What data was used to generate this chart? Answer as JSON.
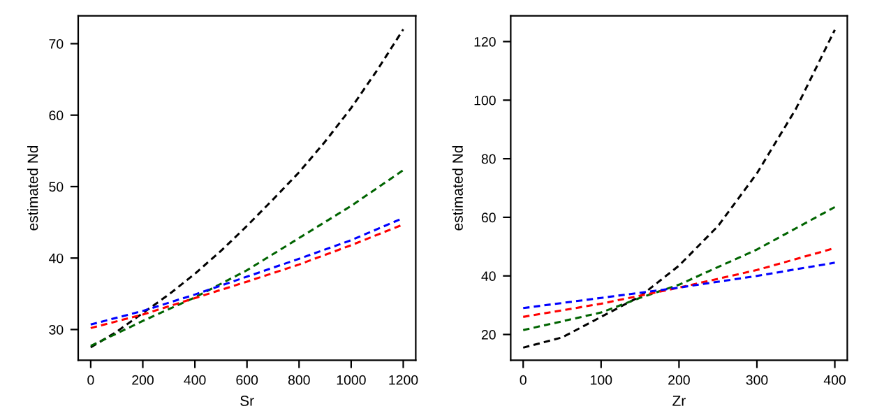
{
  "chart_data": [
    {
      "type": "line",
      "xlabel": "Sr",
      "ylabel": "estimated Nd",
      "xlim": [
        -48,
        1248
      ],
      "ylim": [
        25.7,
        73.9
      ],
      "xticks": [
        0,
        200,
        400,
        600,
        800,
        1000,
        1200
      ],
      "yticks": [
        30,
        40,
        50,
        60,
        70
      ],
      "grid": false,
      "line_style": "dashed",
      "marker": "none",
      "series": [
        {
          "color": "#000000",
          "x": [
            0,
            100,
            200,
            300,
            400,
            500,
            600,
            700,
            800,
            900,
            1000,
            1100,
            1200
          ],
          "values": [
            27.5,
            29.7,
            32.3,
            34.9,
            37.8,
            41,
            44.5,
            48.2,
            52,
            56.3,
            61,
            66.3,
            72
          ]
        },
        {
          "color": "#006400",
          "x": [
            0,
            200,
            400,
            600,
            800,
            1000,
            1200
          ],
          "values": [
            27.7,
            31.2,
            34.5,
            38.3,
            42.8,
            47.3,
            52.3
          ]
        },
        {
          "color": "#ff0000",
          "x": [
            0,
            200,
            400,
            600,
            800,
            1000,
            1200
          ],
          "values": [
            30.2,
            32.1,
            34.4,
            36.7,
            39.1,
            41.8,
            44.7
          ]
        },
        {
          "color": "#0000ff",
          "x": [
            0,
            200,
            400,
            600,
            800,
            1000,
            1200
          ],
          "values": [
            30.7,
            32.6,
            34.9,
            37.4,
            39.9,
            42.5,
            45.6
          ]
        }
      ]
    },
    {
      "type": "line",
      "xlabel": "Zr",
      "ylabel": "estimated Nd",
      "xlim": [
        -16,
        416
      ],
      "ylim": [
        11.2,
        128.8
      ],
      "xticks": [
        0,
        100,
        200,
        300,
        400
      ],
      "yticks": [
        20,
        40,
        60,
        80,
        100,
        120
      ],
      "grid": false,
      "line_style": "dashed",
      "marker": "none",
      "series": [
        {
          "color": "#000000",
          "x": [
            0,
            50,
            100,
            150,
            200,
            250,
            300,
            350,
            400
          ],
          "values": [
            15.5,
            19,
            26,
            33,
            43.5,
            57,
            75,
            97,
            124
          ]
        },
        {
          "color": "#006400",
          "x": [
            0,
            100,
            150,
            200,
            300,
            400
          ],
          "values": [
            21.5,
            27.5,
            32.5,
            37,
            49,
            63.5
          ]
        },
        {
          "color": "#ff0000",
          "x": [
            0,
            100,
            200,
            300,
            400
          ],
          "values": [
            26,
            30.5,
            36,
            42,
            49.5
          ]
        },
        {
          "color": "#0000ff",
          "x": [
            0,
            100,
            200,
            300,
            400
          ],
          "values": [
            29,
            32.5,
            36,
            40,
            44.5
          ]
        }
      ]
    }
  ]
}
